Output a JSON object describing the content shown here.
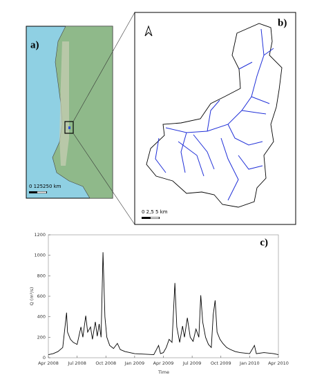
{
  "map_a": {
    "label": "a)",
    "scale_text": "0  125250 km"
  },
  "map_b": {
    "label": "b)",
    "scale_text": "0   2,5   5 km"
  },
  "chart_data": {
    "type": "line",
    "label": "c)",
    "x_label": "Time",
    "y_label": "Q (m³/s)",
    "x": [
      0,
      0.5,
      1.0,
      1.5,
      1.9,
      2.0,
      2.3,
      2.6,
      3.0,
      3.4,
      3.6,
      3.9,
      4.1,
      4.4,
      4.6,
      4.9,
      5.1,
      5.3,
      5.5,
      5.7,
      5.9,
      6.1,
      6.4,
      6.8,
      7.2,
      7.5,
      8.0,
      8.5,
      9.0,
      10,
      11,
      11.5,
      11.7,
      12.0,
      12.3,
      12.6,
      12.9,
      13.2,
      13.4,
      13.7,
      14.0,
      14.2,
      14.5,
      14.8,
      15.1,
      15.4,
      15.7,
      15.9,
      16.1,
      16.4,
      16.7,
      17.0,
      17.2,
      17.4,
      17.6,
      17.9,
      18.2,
      18.6,
      19,
      19.5,
      20,
      21,
      21.5,
      21.7,
      22.5,
      23.5,
      24
    ],
    "series": [
      {
        "name": "Q",
        "color": "#000000",
        "values": [
          30,
          40,
          60,
          100,
          440,
          250,
          180,
          150,
          130,
          300,
          200,
          410,
          250,
          300,
          180,
          350,
          210,
          330,
          200,
          1030,
          400,
          200,
          120,
          90,
          140,
          80,
          60,
          50,
          40,
          35,
          30,
          120,
          40,
          50,
          100,
          180,
          150,
          730,
          300,
          150,
          310,
          200,
          390,
          200,
          160,
          280,
          200,
          610,
          350,
          200,
          130,
          100,
          420,
          560,
          250,
          180,
          140,
          100,
          80,
          60,
          50,
          40,
          120,
          40,
          50,
          40,
          30
        ]
      }
    ],
    "xlim": [
      0,
      24
    ],
    "xticks": [
      {
        "value": 0,
        "label": "Apr 2008"
      },
      {
        "value": 3,
        "label": "Jul 2008"
      },
      {
        "value": 6,
        "label": "Oct 2008"
      },
      {
        "value": 9,
        "label": "Jan 2009"
      },
      {
        "value": 12,
        "label": "Apr 2009"
      },
      {
        "value": 15,
        "label": "Jul 2009"
      },
      {
        "value": 18,
        "label": "Oct 2009"
      },
      {
        "value": 21,
        "label": "Jan 2010"
      },
      {
        "value": 24,
        "label": "Apr 2010"
      }
    ],
    "ylim": [
      0,
      1200
    ],
    "yticks": [
      0,
      200,
      400,
      600,
      800,
      1000,
      1200
    ]
  }
}
